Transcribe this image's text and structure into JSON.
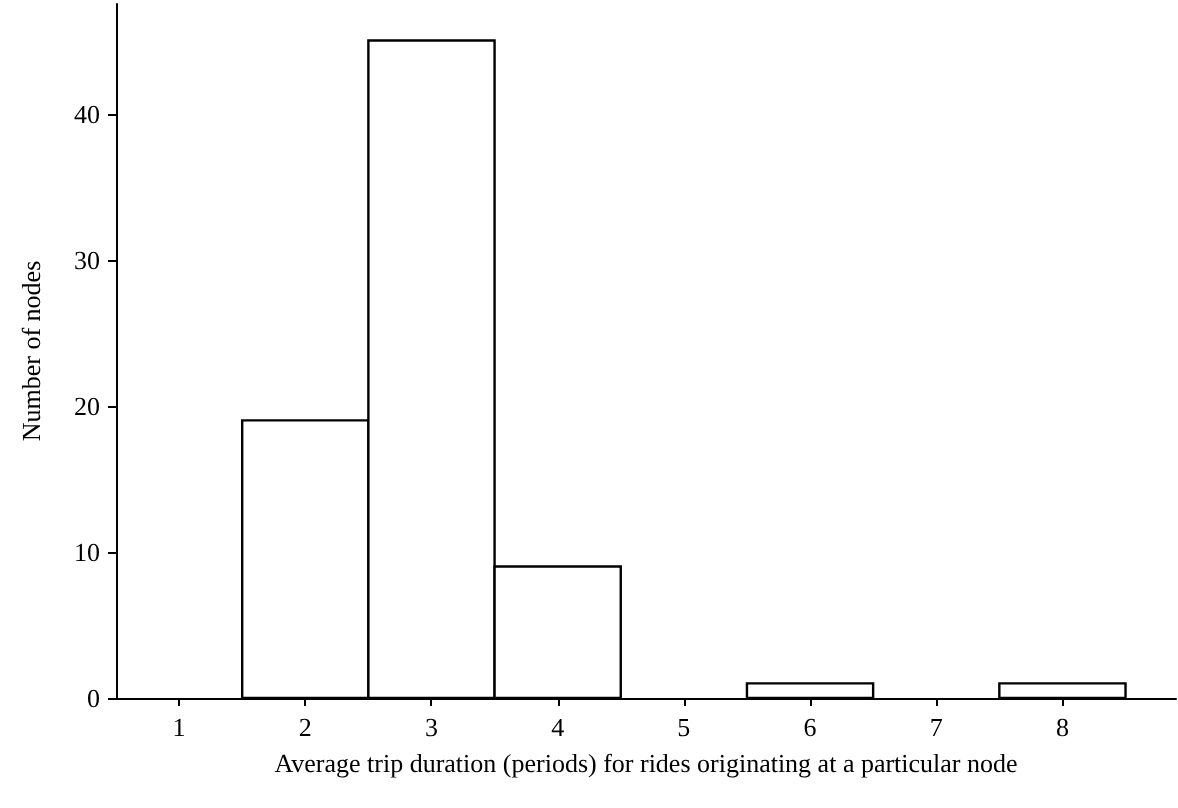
{
  "chart_data": {
    "type": "histogram",
    "xlabel": "Average trip duration (periods) for rides originating at a particular node",
    "ylabel": "Number of nodes",
    "bins": [
      0.5,
      1.5,
      2.5,
      3.5,
      4.5,
      5.5,
      6.5,
      7.5,
      8.5
    ],
    "values": [
      0,
      19,
      45,
      9,
      0,
      1,
      0,
      1
    ],
    "color": "#ffffff",
    "xlim": [
      0.5,
      8.9
    ],
    "xticks": [
      1,
      2,
      3,
      4,
      5,
      6,
      7,
      8
    ],
    "ylim": [
      0,
      47.5
    ],
    "yticks": [
      0,
      10,
      20,
      30,
      40
    ],
    "grid": false
  }
}
